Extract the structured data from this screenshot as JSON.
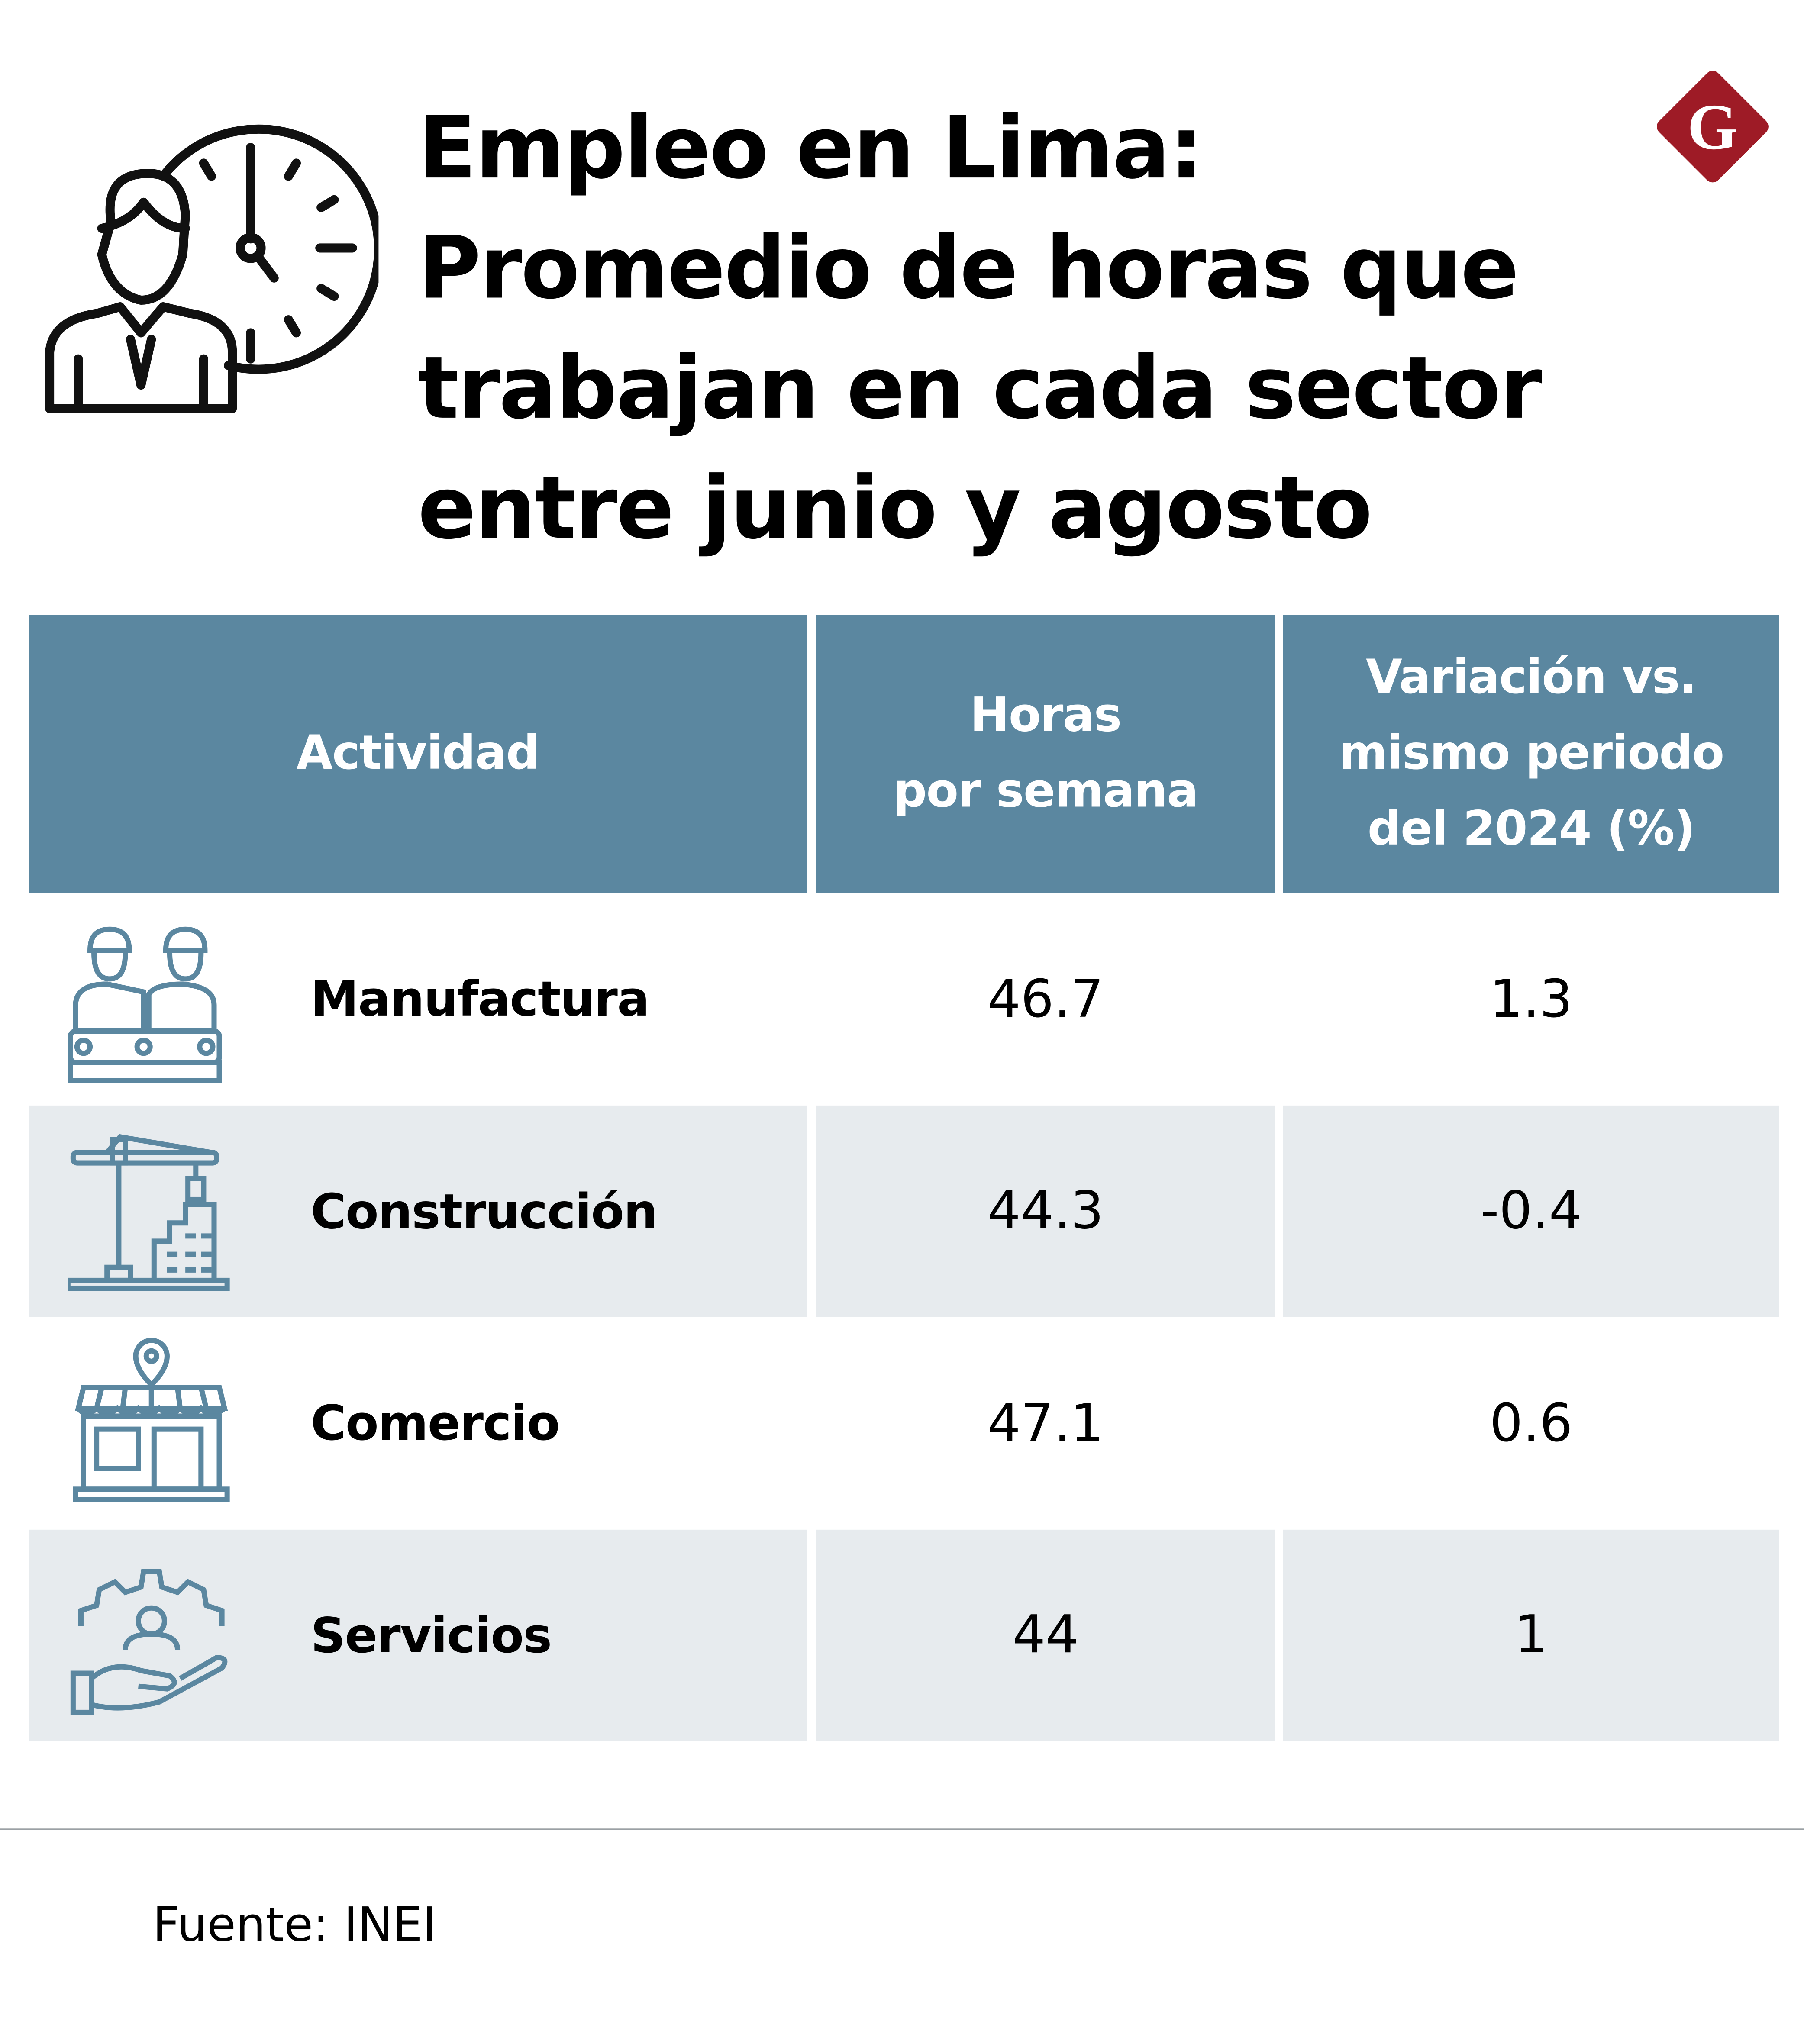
{
  "title_lines": [
    "Empleo en Lima:",
    "Promedio de horas que",
    "trabajan en cada sector",
    "entre junio y agosto"
  ],
  "logo": {
    "letter": "G",
    "color": "#9e1b26"
  },
  "colors": {
    "header": "#5b87a0",
    "row_alt": "#e7ebee",
    "icon": "#5b87a0"
  },
  "table": {
    "headers": {
      "activity": "Actividad",
      "hours": [
        "Horas",
        "por semana"
      ],
      "variation": [
        "Variación vs.",
        "mismo periodo",
        "del 2024 (%)"
      ]
    },
    "rows": [
      {
        "activity": "Manufactura",
        "icon": "factory-workers-icon",
        "hours": "46.7",
        "variation": "1.3"
      },
      {
        "activity": "Construcción",
        "icon": "crane-building-icon",
        "hours": "44.3",
        "variation": "-0.4"
      },
      {
        "activity": "Comercio",
        "icon": "storefront-icon",
        "hours": "47.1",
        "variation": "0.6"
      },
      {
        "activity": "Servicios",
        "icon": "hand-gear-icon",
        "hours": "44",
        "variation": "1"
      }
    ]
  },
  "source": "Fuente: INEI"
}
